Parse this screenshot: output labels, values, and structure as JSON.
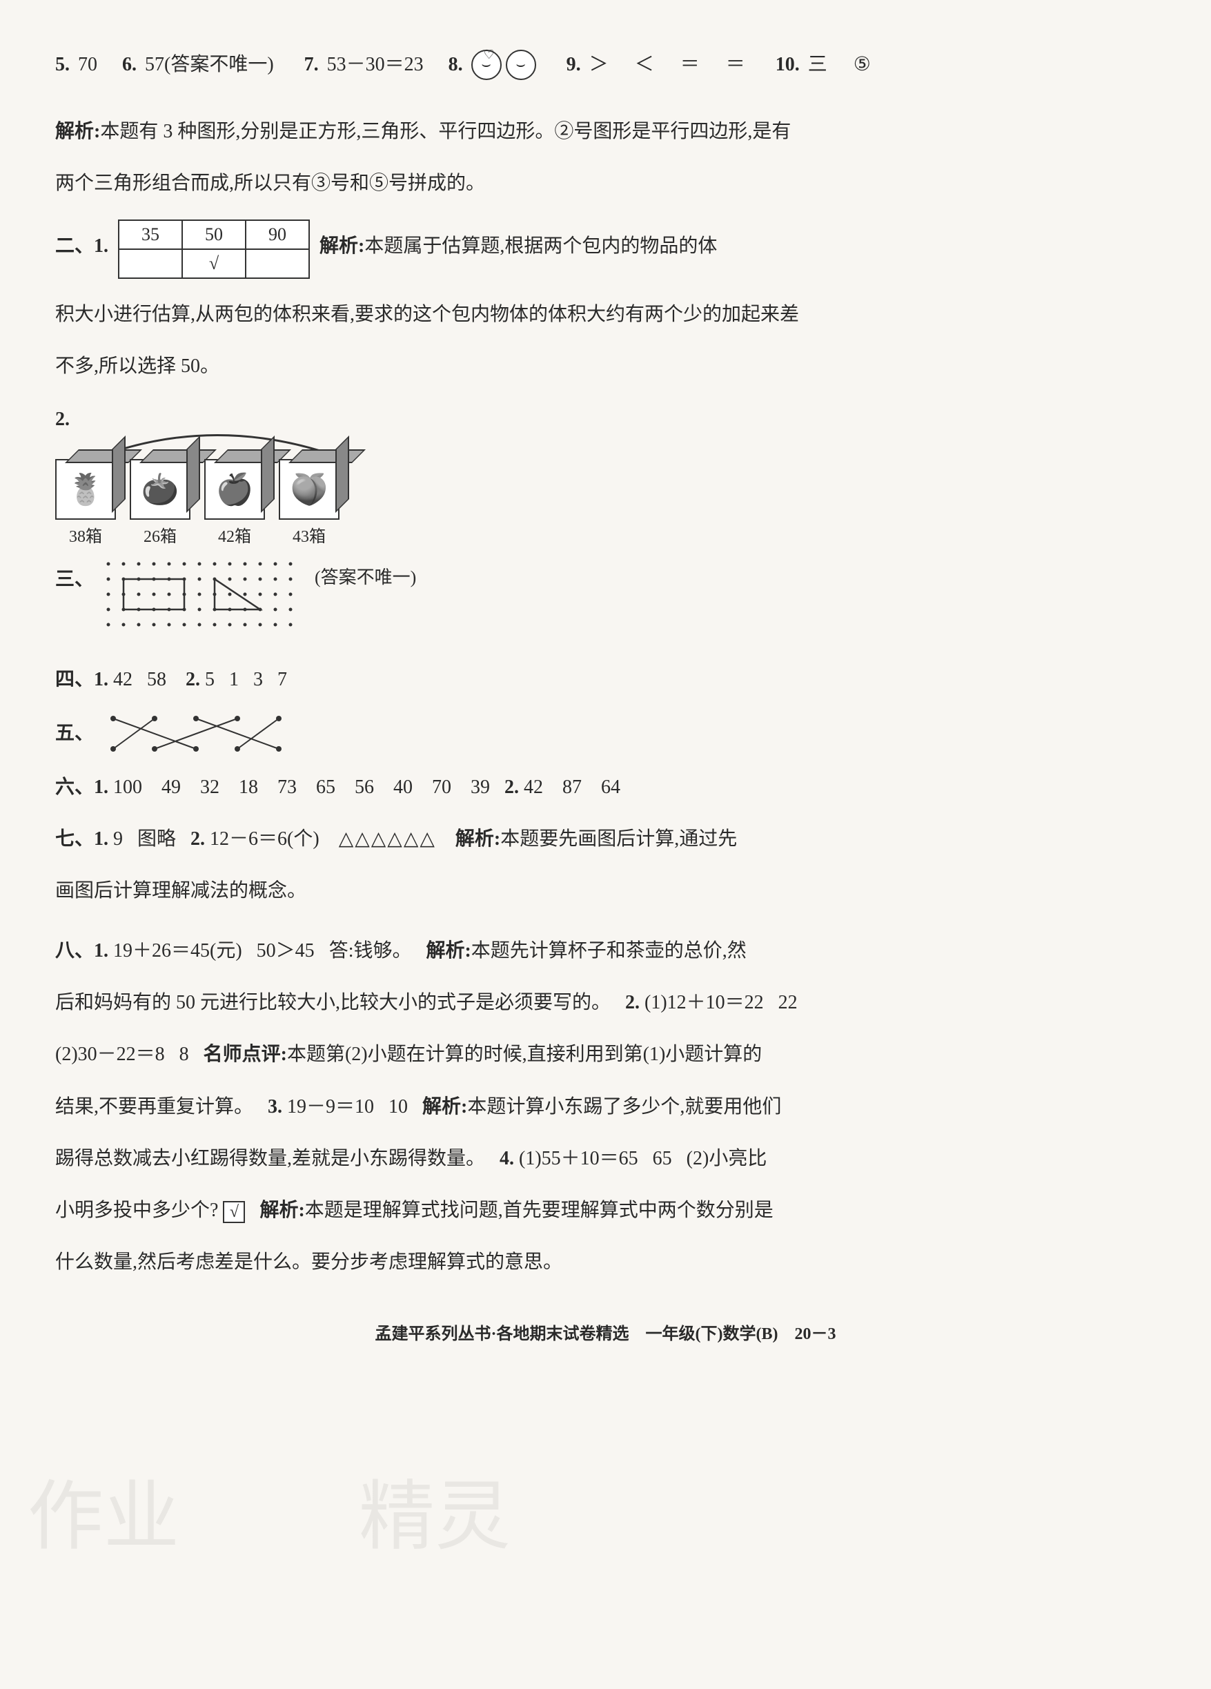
{
  "row1": {
    "q5": {
      "num": "5.",
      "val": "70"
    },
    "q6": {
      "num": "6.",
      "val": "57(答案不唯一)"
    },
    "q7": {
      "num": "7.",
      "val": "53－30＝23"
    },
    "q8": {
      "num": "8."
    },
    "q9": {
      "num": "9.",
      "vals": [
        "＞",
        "＜",
        "＝",
        "＝"
      ]
    },
    "q10": {
      "num": "10.",
      "vals": [
        "三",
        "⑤"
      ]
    }
  },
  "analysis1": {
    "label": "解析:",
    "text1": "本题有 3 种图形,分别是正方形,三角形、平行四边形。②号图形是平行四边形,是有",
    "text2": "两个三角形组合而成,所以只有③号和⑤号拼成的。"
  },
  "section2": {
    "label": "二、1.",
    "table": {
      "headers": [
        "35",
        "50",
        "90"
      ],
      "row2": [
        "",
        "√",
        ""
      ]
    },
    "after": {
      "label": "解析:",
      "text": "本题属于估算题,根据两个包内的物品的体"
    },
    "cont1": "积大小进行估算,从两包的体积来看,要求的这个包内物体的体积大约有两个少的加起来差",
    "cont2": "不多,所以选择 50。"
  },
  "q2boxes": {
    "num": "2.",
    "boxes": [
      {
        "fruit": "🍍",
        "label": "38箱"
      },
      {
        "fruit": "🍅",
        "label": "26箱"
      },
      {
        "fruit": "🍎",
        "label": "42箱"
      },
      {
        "fruit": "🍑",
        "label": "43箱"
      }
    ],
    "arrow_color": "#333"
  },
  "section3": {
    "label": "三、",
    "note": "(答案不唯一)",
    "grid": {
      "rows": 5,
      "cols": 13,
      "dot_spacing": 22
    }
  },
  "section4": {
    "label": "四、1.",
    "vals1": [
      "42",
      "58"
    ],
    "label2": "2.",
    "vals2": [
      "5",
      "1",
      "3",
      "7"
    ]
  },
  "section5": {
    "label": "五、",
    "match": {
      "top_x": [
        20,
        80,
        140,
        200,
        260
      ],
      "bot_x": [
        20,
        80,
        140,
        200,
        260
      ],
      "lines": [
        [
          0,
          2
        ],
        [
          1,
          0
        ],
        [
          2,
          4
        ],
        [
          3,
          1
        ],
        [
          4,
          3
        ]
      ],
      "color": "#333"
    }
  },
  "section6": {
    "label": "六、1.",
    "vals1": [
      "100",
      "49",
      "32",
      "18",
      "73",
      "65",
      "56",
      "40",
      "70",
      "39"
    ],
    "label2": "2.",
    "vals2": [
      "42",
      "87",
      "64"
    ]
  },
  "section7": {
    "label": "七、1.",
    "v1": "9",
    "v1b": "图略",
    "label2": "2.",
    "v2": "12－6＝6(个)",
    "triangles": "△△△△△△",
    "alabel": "解析:",
    "atext": "本题要先画图后计算,通过先",
    "cont": "画图后计算理解减法的概念。"
  },
  "section8": {
    "label": "八、1.",
    "l1a": "19＋26＝45(元)",
    "l1b": "50＞45",
    "l1c": "答:钱够。",
    "alabel": "解析:",
    "l1d": "本题先计算杯子和茶壶的总价,然",
    "l2": "后和妈妈有的 50 元进行比较大小,比较大小的式子是必须要写的。",
    "q2label": "2.",
    "q2a": "(1)12＋10＝22",
    "q2a2": "22",
    "l3a": "(2)30－22＝8",
    "l3a2": "8",
    "tlabel": "名师点评:",
    "l3b": "本题第(2)小题在计算的时候,直接利用到第(1)小题计算的",
    "l4": "结果,不要再重复计算。",
    "q3label": "3.",
    "l4b": "19－9＝10",
    "l4b2": "10",
    "alabel2": "解析:",
    "l4c": "本题计算小东踢了多少个,就要用他们",
    "l5": "踢得总数减去小红踢得数量,差就是小东踢得数量。",
    "q4label": "4.",
    "l5b": "(1)55＋10＝65",
    "l5b2": "65",
    "l5c": "(2)小亮比",
    "l6a": "小明多投中多少个?",
    "check": "√",
    "alabel3": "解析:",
    "l6b": "本题是理解算式找问题,首先要理解算式中两个数分别是",
    "l7": "什么数量,然后考虑差是什么。要分步考虑理解算式的意思。"
  },
  "footer": "孟建平系列丛书·各地期末试卷精选　一年级(下)数学(B)　20－3",
  "colors": {
    "text": "#2a2a2a",
    "bg": "#f8f6f2",
    "border": "#333"
  }
}
